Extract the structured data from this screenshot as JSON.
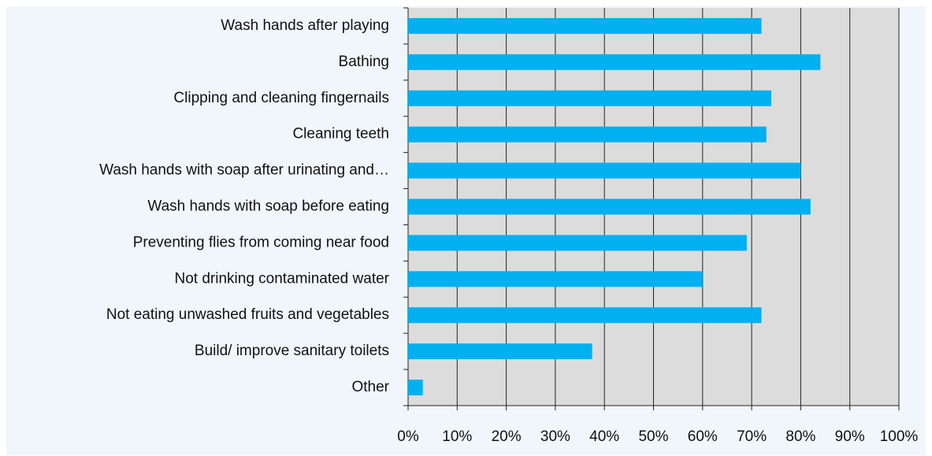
{
  "chart_data": {
    "type": "bar",
    "orientation": "horizontal",
    "categories": [
      "Wash hands after playing",
      "Bathing",
      "Clipping and cleaning fingernails",
      "Cleaning teeth",
      "Wash hands with soap after urinating and…",
      "Wash hands with soap before eating",
      "Preventing flies from coming near food",
      "Not drinking contaminated water",
      "Not eating unwashed fruits and vegetables",
      "Build/ improve sanitary toilets",
      "Other"
    ],
    "values": [
      72,
      84,
      74,
      73,
      80,
      82,
      69,
      60,
      72,
      37.5,
      3
    ],
    "color": "#00b0f0",
    "xlim": [
      0,
      100
    ],
    "xticks": [
      {
        "value": 0,
        "label": "0%"
      },
      {
        "value": 10,
        "label": "10%"
      },
      {
        "value": 20,
        "label": "20%"
      },
      {
        "value": 30,
        "label": "30%"
      },
      {
        "value": 40,
        "label": "40%"
      },
      {
        "value": 50,
        "label": "50%"
      },
      {
        "value": 60,
        "label": "60%"
      },
      {
        "value": 70,
        "label": "70%"
      },
      {
        "value": 80,
        "label": "80%"
      },
      {
        "value": 90,
        "label": "90%"
      },
      {
        "value": 100,
        "label": "100%"
      }
    ],
    "grid": true
  }
}
